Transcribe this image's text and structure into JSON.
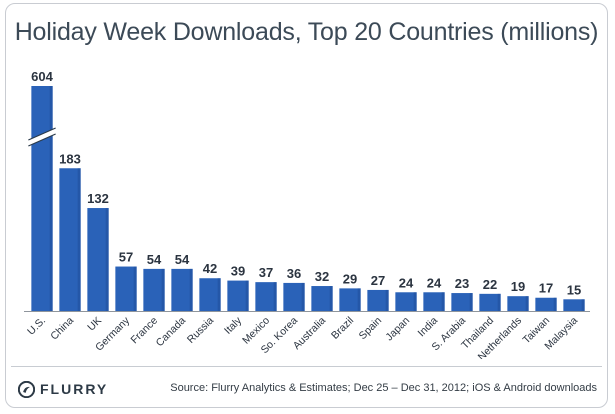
{
  "chart_data": {
    "type": "bar",
    "title": "Holiday Week Downloads, Top 20 Countries (millions)",
    "xlabel": "",
    "ylabel": "",
    "categories": [
      "U.S.",
      "China",
      "UK",
      "Germany",
      "France",
      "Canada",
      "Russia",
      "Italy",
      "Mexico",
      "So. Korea",
      "Australia",
      "Brazil",
      "Spain",
      "Japan",
      "India",
      "S. Arabia",
      "Thailand",
      "Netherlands",
      "Taiwan",
      "Malaysia"
    ],
    "values": [
      604,
      183,
      132,
      57,
      54,
      54,
      42,
      39,
      37,
      36,
      32,
      29,
      27,
      24,
      24,
      23,
      22,
      19,
      17,
      15
    ],
    "data_labels": [
      "604",
      "183",
      "132",
      "57",
      "54",
      "54",
      "42",
      "39",
      "37",
      "36",
      "32",
      "29",
      "27",
      "24",
      "24",
      "23",
      "22",
      "19",
      "17",
      "15"
    ],
    "axis_break": {
      "category": "U.S.",
      "note": "broken axis on first bar"
    },
    "grid": false,
    "legend": "none",
    "colors": {
      "bar": "#2a62b8",
      "bar_dark": "#1f4f9a",
      "text": "#3c4a57"
    }
  },
  "footer": {
    "logo_text": "FLURRY",
    "logo_icon": "flurry-logo-icon",
    "source": "Source: Flurry Analytics & Estimates; Dec 25 – Dec 31, 2012; iOS & Android downloads"
  }
}
